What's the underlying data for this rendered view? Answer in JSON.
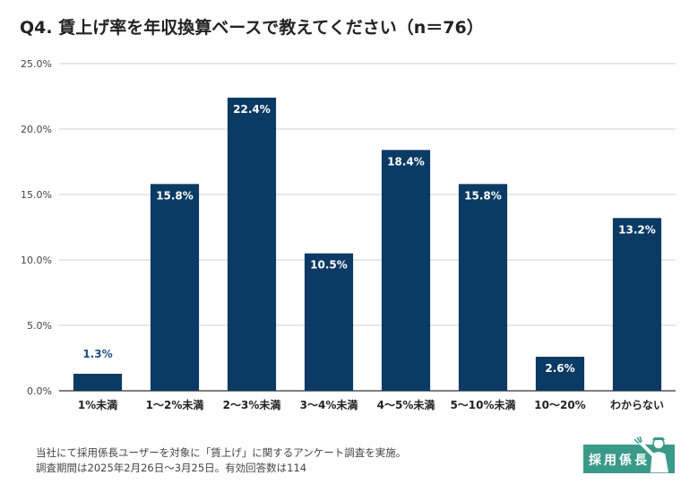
{
  "title": "Q4. 賃上げ率を年収換算ベースで教えてください（n＝76）",
  "chart_data": {
    "type": "bar",
    "categories": [
      "1%未満",
      "1～2%未満",
      "2～3%未満",
      "3～4%未満",
      "4～5%未満",
      "5～10%未満",
      "10～20%",
      "わからない"
    ],
    "values": [
      1.3,
      15.8,
      22.4,
      10.5,
      18.4,
      15.8,
      2.6,
      13.2
    ],
    "data_labels": [
      "1.3%",
      "15.8%",
      "22.4%",
      "10.5%",
      "18.4%",
      "15.8%",
      "2.6%",
      "13.2%"
    ],
    "y_ticks": [
      0,
      5,
      10,
      15,
      20,
      25
    ],
    "y_tick_labels": [
      "0.0%",
      "5.0%",
      "10.0%",
      "15.0%",
      "20.0%",
      "25.0%"
    ],
    "ylim": [
      0,
      25
    ],
    "grid": true,
    "bar_color": "#0b3a64"
  },
  "footer": {
    "line1": "当社にて採用係長ユーザーを対象に「賃上げ」に関するアンケート調査を実施。",
    "line2": "調査期間は2025年2月26日～3月25日。有効回答数は114"
  },
  "logo": {
    "text": "採用係長",
    "color": "#3a9a8a"
  }
}
